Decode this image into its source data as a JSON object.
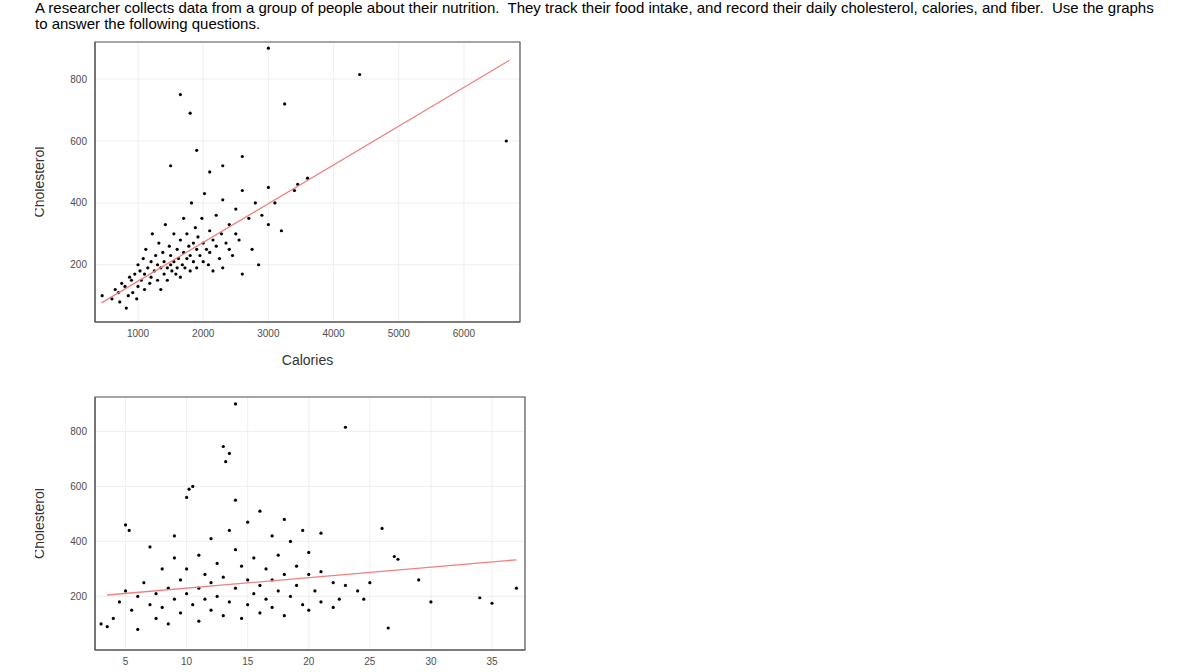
{
  "header": "A researcher collects data from a group of people about their nutrition.  They track their food intake, and record their daily cholesterol, calories, and fiber.  Use the graphs to answer the following questions.",
  "chart_data": [
    {
      "type": "scatter",
      "x_label": "Calories",
      "y_label": "Cholesterol",
      "xlim": [
        340,
        6860
      ],
      "ylim": [
        15,
        920
      ],
      "xticks": [
        1000,
        2000,
        3000,
        4000,
        5000,
        6000
      ],
      "yticks": [
        200,
        400,
        600,
        800
      ],
      "grid": true,
      "color": "#000000",
      "marker": "circle",
      "x": [
        450,
        600,
        650,
        700,
        720,
        750,
        800,
        820,
        850,
        870,
        900,
        920,
        950,
        980,
        1000,
        1000,
        1030,
        1050,
        1080,
        1100,
        1100,
        1120,
        1150,
        1180,
        1200,
        1200,
        1220,
        1250,
        1270,
        1300,
        1300,
        1320,
        1350,
        1350,
        1380,
        1400,
        1400,
        1420,
        1450,
        1450,
        1480,
        1500,
        1500,
        1520,
        1550,
        1550,
        1580,
        1600,
        1600,
        1620,
        1650,
        1650,
        1680,
        1700,
        1700,
        1720,
        1750,
        1750,
        1780,
        1800,
        1800,
        1820,
        1850,
        1850,
        1880,
        1900,
        1900,
        1920,
        1950,
        1980,
        2000,
        2000,
        2020,
        2050,
        2080,
        2100,
        2100,
        2150,
        2150,
        2200,
        2200,
        2250,
        2280,
        2300,
        2300,
        2350,
        2400,
        2400,
        2450,
        2500,
        2500,
        2550,
        2600,
        2600,
        2700,
        2750,
        2800,
        2850,
        2900,
        3000,
        3000,
        3100,
        3200,
        3400,
        3600,
        3000,
        4400,
        3250,
        1650,
        1800,
        6650,
        1900,
        2600,
        2300,
        1500,
        2100,
        3450
      ],
      "y": [
        100,
        90,
        120,
        110,
        80,
        140,
        130,
        60,
        100,
        160,
        150,
        110,
        170,
        90,
        130,
        200,
        180,
        150,
        220,
        120,
        170,
        250,
        190,
        140,
        160,
        210,
        300,
        180,
        230,
        150,
        200,
        270,
        120,
        190,
        240,
        170,
        210,
        330,
        190,
        150,
        260,
        200,
        230,
        180,
        210,
        300,
        170,
        250,
        190,
        220,
        280,
        160,
        200,
        240,
        350,
        190,
        220,
        300,
        260,
        180,
        230,
        400,
        270,
        210,
        320,
        250,
        190,
        290,
        230,
        350,
        210,
        270,
        430,
        250,
        200,
        310,
        240,
        180,
        280,
        260,
        360,
        220,
        300,
        410,
        190,
        270,
        250,
        330,
        230,
        300,
        380,
        280,
        170,
        440,
        350,
        250,
        400,
        200,
        360,
        450,
        330,
        400,
        310,
        440,
        480,
        900,
        815,
        720,
        750,
        690,
        600,
        570,
        550,
        520,
        520,
        500,
        460
      ],
      "trend_line": {
        "x": [
          440,
          6700
        ],
        "y": [
          77,
          861
        ],
        "color": "#f08080"
      }
    },
    {
      "type": "scatter",
      "y_label": "Cholesterol",
      "xlim": [
        2.5,
        37.7
      ],
      "ylim": [
        5,
        925
      ],
      "xticks": [
        5,
        10,
        15,
        20,
        25,
        30,
        35
      ],
      "yticks": [
        200,
        400,
        600,
        800
      ],
      "grid": true,
      "color": "#000000",
      "marker": "circle",
      "x": [
        3,
        3.5,
        4,
        4.5,
        5,
        5.3,
        5,
        5.5,
        6,
        6,
        6.5,
        7,
        7,
        7.5,
        7.5,
        8,
        8,
        8.5,
        8.5,
        9,
        9,
        9,
        9.5,
        9.5,
        10,
        10,
        10.2,
        10.5,
        10,
        10.5,
        11,
        11,
        11,
        11.5,
        11.5,
        12,
        12,
        12,
        12.5,
        12.5,
        13,
        13.2,
        13.5,
        13,
        13,
        13.5,
        13.5,
        14,
        14,
        14,
        14,
        14.5,
        14.5,
        15,
        15,
        15,
        15.5,
        15.5,
        16,
        16,
        16,
        16.5,
        16.5,
        17,
        17,
        17,
        17.5,
        17.5,
        18,
        18,
        18,
        18.5,
        18.5,
        19,
        19,
        19.5,
        19.5,
        20,
        20,
        20,
        20.5,
        21,
        21,
        21,
        22,
        22,
        22.5,
        23,
        23,
        24,
        24.5,
        25,
        26,
        26.5,
        27,
        27.3,
        29,
        30,
        34,
        35,
        37
      ],
      "y": [
        100,
        90,
        120,
        180,
        460,
        440,
        220,
        150,
        200,
        80,
        250,
        170,
        380,
        120,
        210,
        300,
        160,
        230,
        100,
        190,
        340,
        420,
        260,
        140,
        210,
        560,
        590,
        600,
        300,
        170,
        350,
        230,
        110,
        280,
        190,
        410,
        250,
        150,
        320,
        200,
        745,
        690,
        720,
        270,
        130,
        440,
        180,
        900,
        550,
        230,
        370,
        310,
        120,
        470,
        260,
        170,
        340,
        210,
        240,
        510,
        140,
        300,
        190,
        420,
        260,
        160,
        350,
        220,
        480,
        280,
        130,
        400,
        200,
        310,
        240,
        440,
        170,
        280,
        360,
        150,
        220,
        430,
        290,
        180,
        250,
        160,
        190,
        815,
        240,
        220,
        190,
        250,
        447,
        85,
        345,
        335,
        260,
        180,
        195,
        175,
        230
      ],
      "trend_line": {
        "x": [
          3.5,
          37
        ],
        "y": [
          205,
          333
        ],
        "color": "#f08080"
      }
    }
  ]
}
